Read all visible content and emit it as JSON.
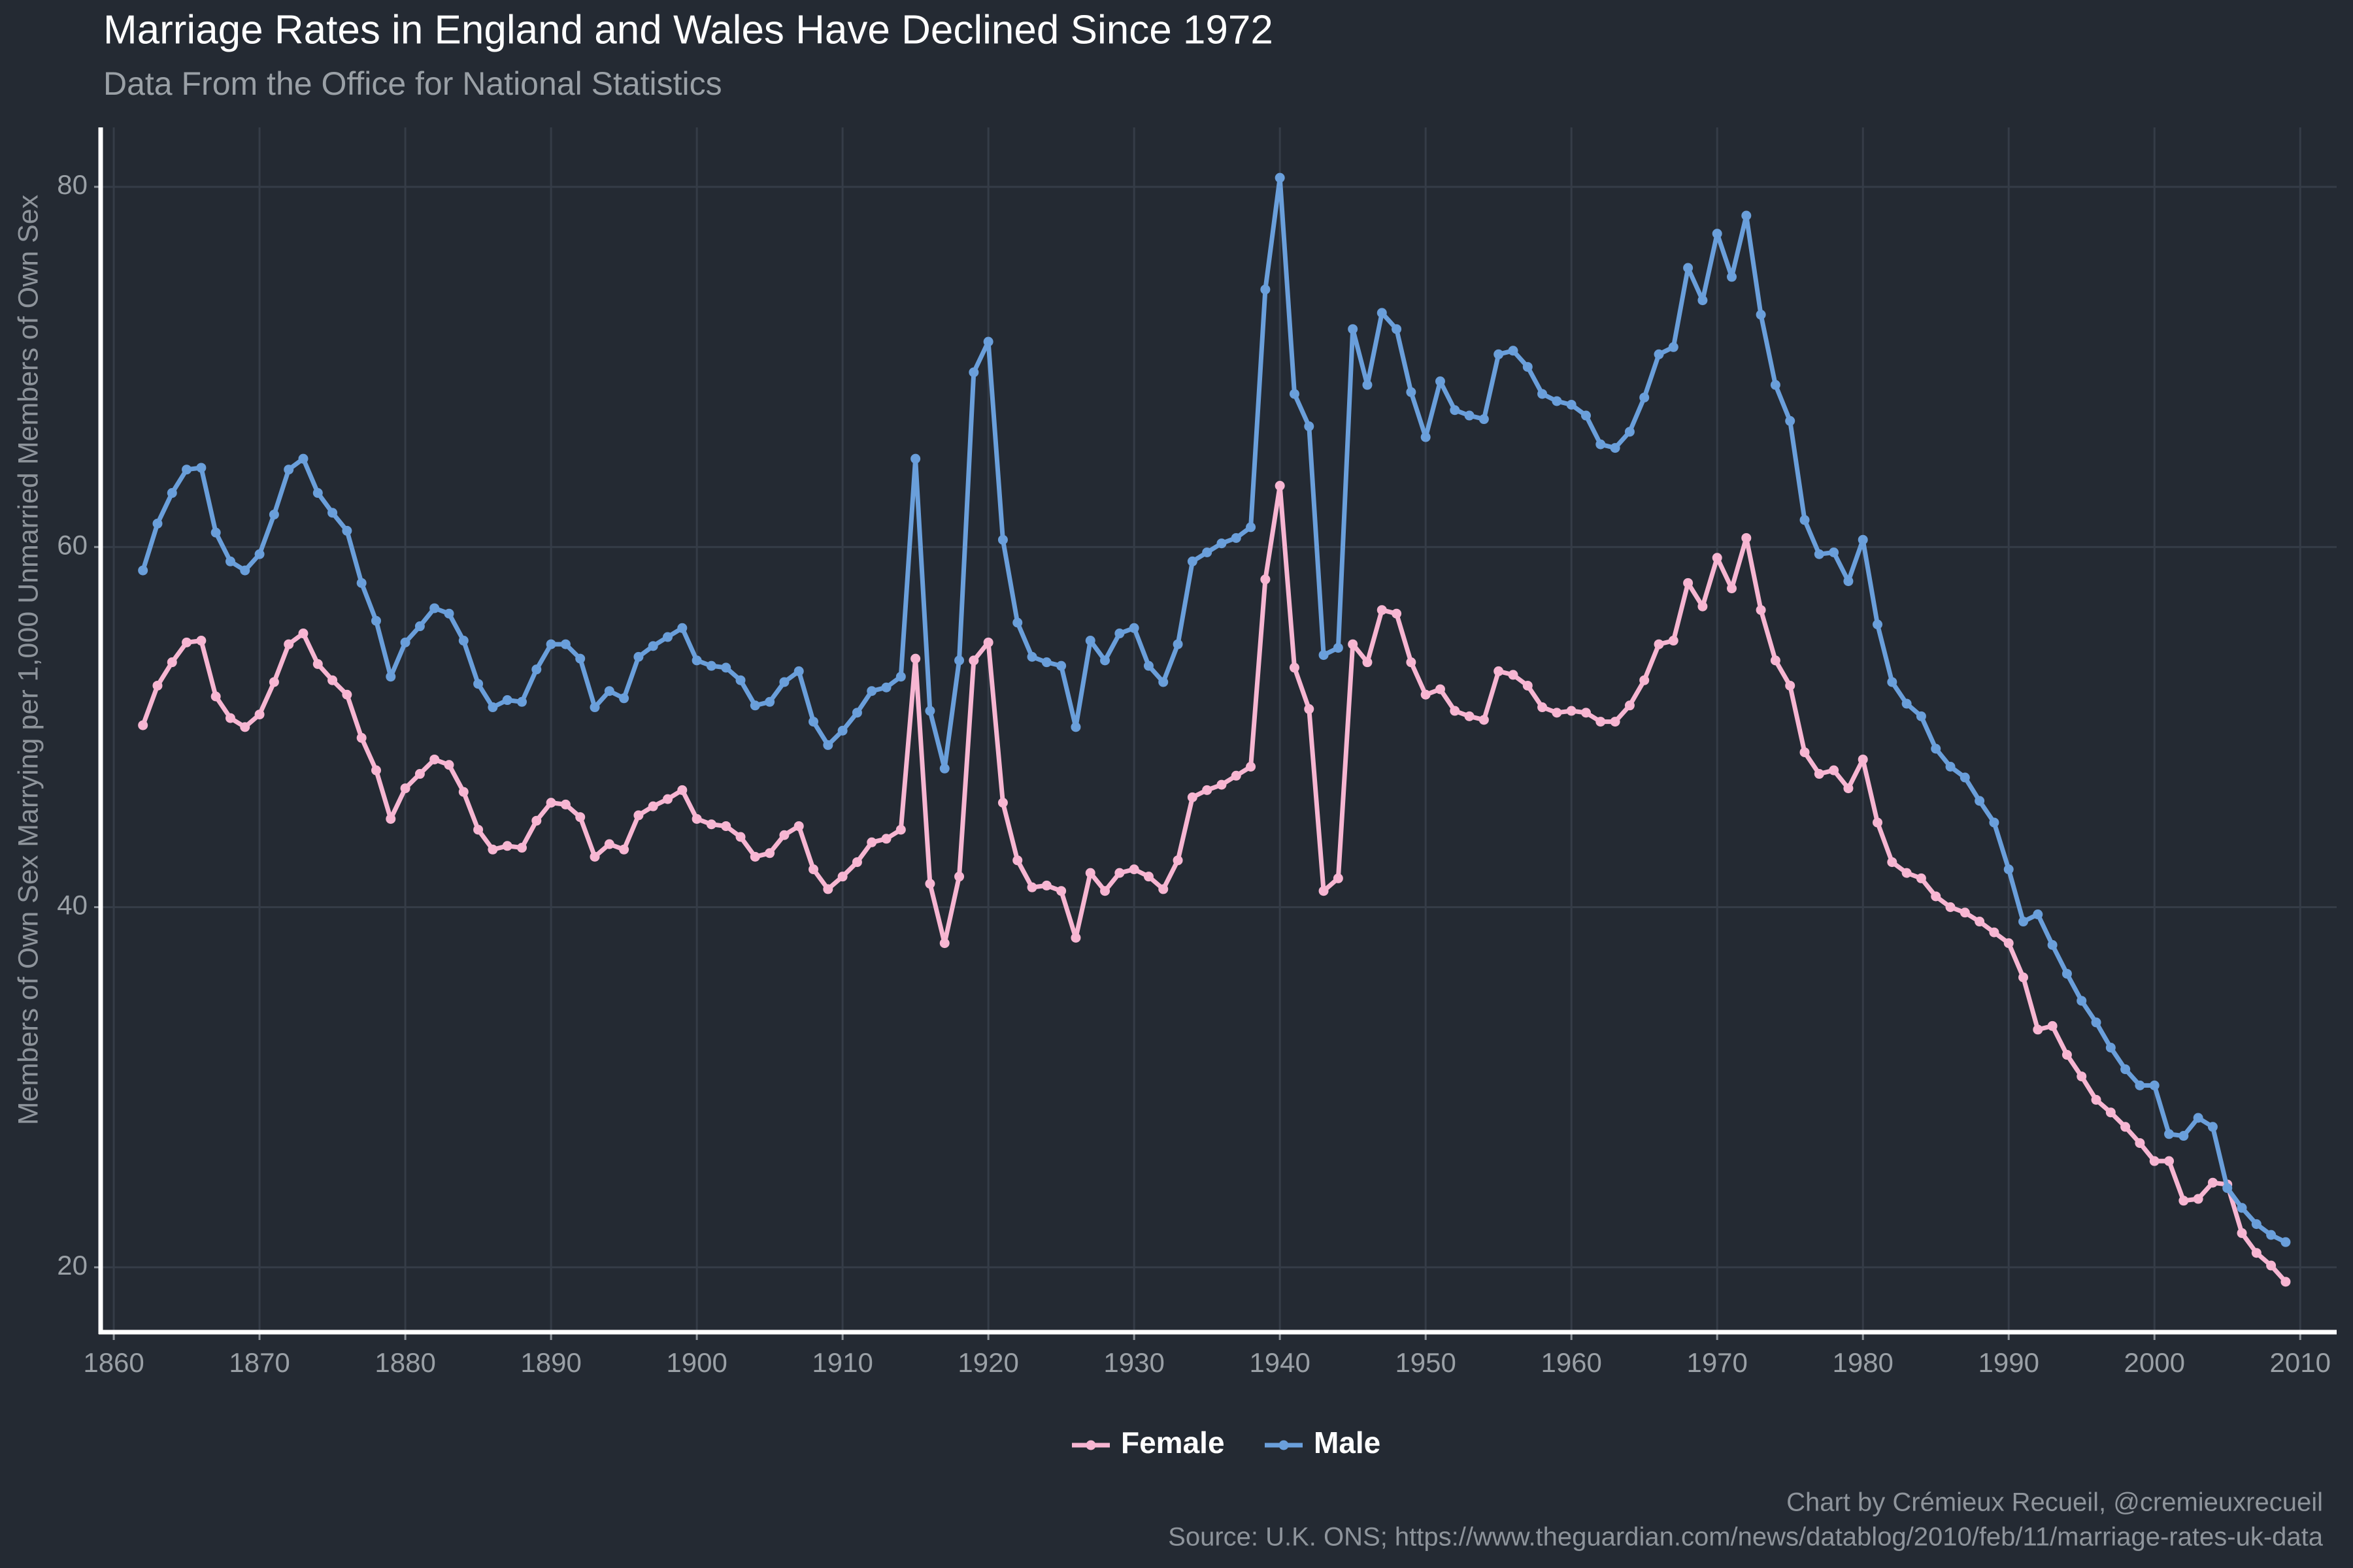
{
  "chart_data": {
    "type": "line",
    "title": "Marriage Rates in England and Wales Have Declined Since 1972",
    "subtitle": "Data From the Office for National Statistics",
    "y_label": "Members of Own Sex Marrying per 1,000 Unmarried Members of Own Sex",
    "captions": [
      "Chart by Crémieux Recueil, @cremieuxrecueil",
      "Source: U.K. ONS; https://www.theguardian.com/news/datablog/2010/feb/11/marriage-rates-uk-data"
    ],
    "x": [
      1862,
      1863,
      1864,
      1865,
      1866,
      1867,
      1868,
      1869,
      1870,
      1871,
      1872,
      1873,
      1874,
      1875,
      1876,
      1877,
      1878,
      1879,
      1880,
      1881,
      1882,
      1883,
      1884,
      1885,
      1886,
      1887,
      1888,
      1889,
      1890,
      1891,
      1892,
      1893,
      1894,
      1895,
      1896,
      1897,
      1898,
      1899,
      1900,
      1901,
      1902,
      1903,
      1904,
      1905,
      1906,
      1907,
      1908,
      1909,
      1910,
      1911,
      1912,
      1913,
      1914,
      1915,
      1916,
      1917,
      1918,
      1919,
      1920,
      1921,
      1922,
      1923,
      1924,
      1925,
      1926,
      1927,
      1928,
      1929,
      1930,
      1931,
      1932,
      1933,
      1934,
      1935,
      1936,
      1937,
      1938,
      1939,
      1940,
      1941,
      1942,
      1943,
      1944,
      1945,
      1946,
      1947,
      1948,
      1949,
      1950,
      1951,
      1952,
      1953,
      1954,
      1955,
      1956,
      1957,
      1958,
      1959,
      1960,
      1961,
      1962,
      1963,
      1964,
      1965,
      1966,
      1967,
      1968,
      1969,
      1970,
      1971,
      1972,
      1973,
      1974,
      1975,
      1976,
      1977,
      1978,
      1979,
      1980,
      1981,
      1982,
      1983,
      1984,
      1985,
      1986,
      1987,
      1988,
      1989,
      1990,
      1991,
      1992,
      1993,
      1994,
      1995,
      1996,
      1997,
      1998,
      1999,
      2000,
      2001,
      2002,
      2003,
      2004,
      2005,
      2006,
      2007,
      2008,
      2009
    ],
    "series": [
      {
        "name": "Female",
        "color": "#f7b6d2",
        "values": [
          50.1,
          52.3,
          53.6,
          54.7,
          54.8,
          51.7,
          50.5,
          50,
          50.7,
          52.5,
          54.6,
          55.2,
          53.5,
          52.6,
          51.8,
          49.4,
          47.6,
          44.9,
          46.6,
          47.4,
          48.2,
          47.9,
          46.4,
          44.3,
          43.2,
          43.4,
          43.3,
          44.8,
          45.8,
          45.7,
          45,
          42.8,
          43.5,
          43.2,
          45.1,
          45.6,
          46,
          46.5,
          44.9,
          44.6,
          44.5,
          43.9,
          42.8,
          43,
          44,
          44.5,
          42.1,
          41,
          41.7,
          42.5,
          43.6,
          43.8,
          44.3,
          53.8,
          41.3,
          38,
          41.7,
          53.7,
          54.7,
          45.8,
          42.6,
          41.1,
          41.2,
          40.9,
          38.3,
          41.9,
          40.9,
          41.9,
          42.1,
          41.7,
          41,
          42.6,
          46.1,
          46.5,
          46.8,
          47.3,
          47.8,
          58.2,
          63.4,
          53.3,
          51,
          40.9,
          41.6,
          54.6,
          53.6,
          56.5,
          56.3,
          53.6,
          51.8,
          52.1,
          50.9,
          50.6,
          50.4,
          53.1,
          52.9,
          52.3,
          51.1,
          50.8,
          50.9,
          50.8,
          50.3,
          50.3,
          51.2,
          52.6,
          54.6,
          54.8,
          58,
          56.7,
          59.4,
          57.7,
          60.5,
          56.5,
          53.7,
          52.3,
          48.6,
          47.4,
          47.6,
          46.6,
          48.2,
          44.7,
          42.5,
          41.9,
          41.6,
          40.6,
          40,
          39.7,
          39.2,
          38.6,
          38,
          36.1,
          33.2,
          33.4,
          31.8,
          30.6,
          29.3,
          28.6,
          27.8,
          26.9,
          25.9,
          25.9,
          23.7,
          23.8,
          24.7,
          24.6,
          21.9,
          20.8,
          20.1,
          19.2
        ]
      },
      {
        "name": "Male",
        "color": "#6a9fdb",
        "values": [
          58.7,
          61.3,
          63,
          64.3,
          64.4,
          60.8,
          59.2,
          58.7,
          59.6,
          61.8,
          64.3,
          64.9,
          63,
          61.9,
          60.9,
          58,
          55.9,
          52.8,
          54.7,
          55.6,
          56.6,
          56.3,
          54.8,
          52.4,
          51.1,
          51.5,
          51.4,
          53.2,
          54.6,
          54.6,
          53.8,
          51.1,
          52,
          51.6,
          53.9,
          54.5,
          55,
          55.5,
          53.7,
          53.4,
          53.3,
          52.6,
          51.2,
          51.4,
          52.5,
          53.1,
          50.3,
          49,
          49.8,
          50.8,
          52,
          52.2,
          52.8,
          64.9,
          50.9,
          47.7,
          53.7,
          69.7,
          71.4,
          60.4,
          55.8,
          53.9,
          53.6,
          53.4,
          50,
          54.8,
          53.7,
          55.2,
          55.5,
          53.4,
          52.5,
          54.6,
          59.2,
          59.7,
          60.2,
          60.5,
          61.1,
          74.3,
          80.5,
          68.5,
          66.7,
          54,
          54.4,
          72.1,
          69,
          73,
          72.1,
          68.6,
          66.1,
          69.2,
          67.6,
          67.3,
          67.1,
          70.7,
          70.9,
          70,
          68.5,
          68.1,
          67.9,
          67.3,
          65.7,
          65.5,
          66.4,
          68.3,
          70.7,
          71.1,
          75.5,
          73.7,
          77.4,
          75,
          78.4,
          72.9,
          69,
          67,
          61.5,
          59.6,
          59.7,
          58.1,
          60.4,
          55.7,
          52.5,
          51.3,
          50.6,
          48.8,
          47.8,
          47.2,
          45.9,
          44.7,
          42.1,
          39.2,
          39.6,
          37.9,
          36.3,
          34.8,
          33.6,
          32.2,
          31,
          30.1,
          30.1,
          27.4,
          27.3,
          28.3,
          27.8,
          24.4,
          23.3,
          22.4,
          21.8,
          21.4
        ]
      }
    ],
    "xlim": [
      1859.1,
      2012.5
    ],
    "ylim": [
      16.4,
      83.3
    ],
    "xticks": [
      1860,
      1870,
      1880,
      1890,
      1900,
      1910,
      1920,
      1930,
      1940,
      1950,
      1960,
      1970,
      1980,
      1990,
      2000,
      2010
    ],
    "yticks": [
      20,
      40,
      60,
      80
    ],
    "grid": true,
    "legend": "bottom"
  }
}
